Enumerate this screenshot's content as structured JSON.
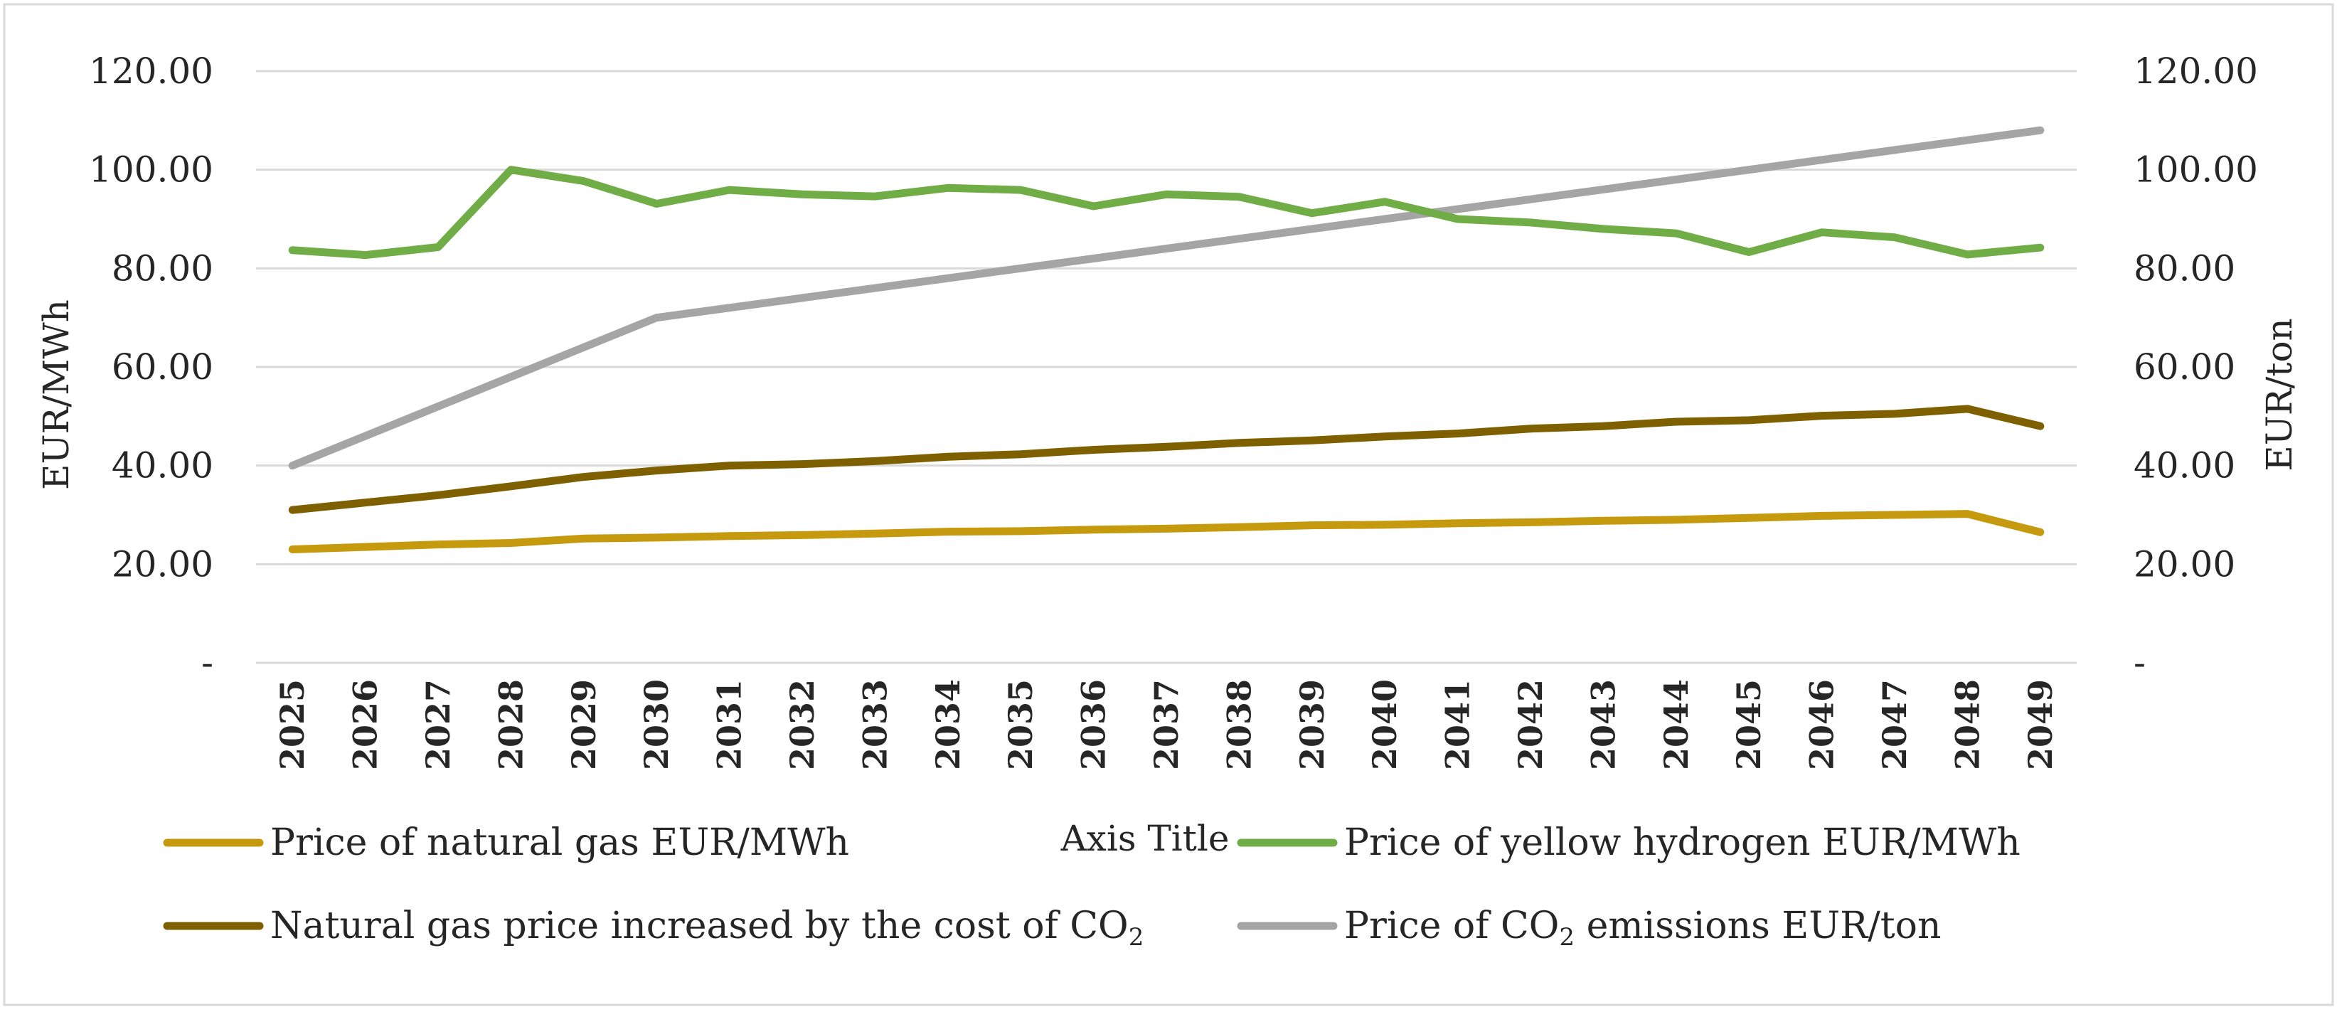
{
  "chart_data": {
    "type": "line",
    "title": "",
    "categories": [
      "2025",
      "2026",
      "2027",
      "2028",
      "2029",
      "2030",
      "2031",
      "2032",
      "2033",
      "2034",
      "2035",
      "2036",
      "2037",
      "2038",
      "2039",
      "2040",
      "2041",
      "2042",
      "2043",
      "2044",
      "2045",
      "2046",
      "2047",
      "2048",
      "2049"
    ],
    "xlabel": "Axis Title",
    "ylabel_left": "EUR/MWh",
    "ylabel_right": "EUR/ton",
    "ylim_left": [
      0,
      120
    ],
    "ylim_right": [
      0,
      120
    ],
    "left_ticks": [
      "-",
      "20.00",
      "40.00",
      "60.00",
      "80.00",
      "100.00",
      "120.00"
    ],
    "right_ticks": [
      "-",
      "20.00",
      "40.00",
      "60.00",
      "80.00",
      "100.00",
      "120.00"
    ],
    "grid": true,
    "legend_position": "bottom",
    "series": [
      {
        "name": "Price of natural gas EUR/MWh",
        "axis": "left",
        "color": "#C59A0F",
        "values": [
          23.0,
          23.5,
          24.0,
          24.3,
          25.2,
          25.4,
          25.7,
          25.9,
          26.2,
          26.6,
          26.7,
          27.0,
          27.2,
          27.5,
          27.9,
          28.0,
          28.3,
          28.5,
          28.8,
          29.0,
          29.4,
          29.8,
          30.0,
          30.2,
          26.5
        ]
      },
      {
        "name": "Price of yellow hydrogen EUR/MWh",
        "axis": "left",
        "color": "#70AD47",
        "values": [
          83.7,
          82.7,
          84.3,
          100.0,
          97.7,
          93.1,
          95.9,
          95.0,
          94.6,
          96.3,
          95.9,
          92.6,
          95.0,
          94.5,
          91.2,
          93.5,
          90.0,
          89.3,
          88.0,
          87.1,
          83.3,
          87.3,
          86.3,
          82.8,
          84.2
        ]
      },
      {
        "name": "Natural gas price increased by the cost of CO",
        "name_subscript": "2",
        "axis": "left",
        "color": "#7F6000",
        "values": [
          31.0,
          32.5,
          34.0,
          35.8,
          37.7,
          39.0,
          40.0,
          40.3,
          40.9,
          41.8,
          42.3,
          43.2,
          43.8,
          44.6,
          45.1,
          45.9,
          46.5,
          47.5,
          48.0,
          48.9,
          49.2,
          50.1,
          50.5,
          51.5,
          48.0
        ]
      },
      {
        "name": "Price of CO",
        "name_subscript": "2",
        "name_suffix": " emissions EUR/ton",
        "axis": "right",
        "color": "#A5A5A5",
        "values": [
          40.0,
          46.0,
          52.0,
          58.0,
          64.0,
          70.0,
          72.0,
          74.0,
          76.0,
          78.0,
          80.0,
          82.0,
          84.0,
          86.0,
          88.0,
          90.0,
          92.0,
          94.0,
          96.0,
          98.0,
          100.0,
          102.0,
          104.0,
          106.0,
          108.0
        ]
      }
    ]
  }
}
